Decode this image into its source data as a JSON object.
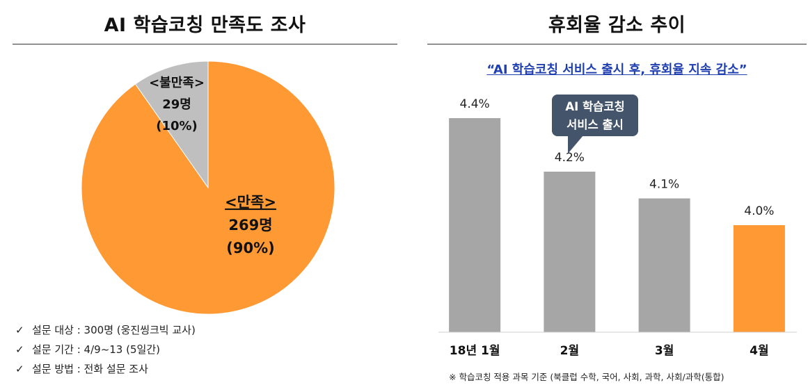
{
  "left": {
    "title": "AI 학습코칭 만족도 조사",
    "notes": [
      {
        "check": "✓",
        "text": "설문 대상 : 300명 (웅진씽크빅 교사)"
      },
      {
        "check": "✓",
        "text": "설문 기간 : 4/9~13 (5일간)"
      },
      {
        "check": "✓",
        "text": "설문 방법 : 전화 설문 조사"
      }
    ]
  },
  "right": {
    "title": "휴회율 감소 추이",
    "subtitle": "“AI 학습코칭 서비스 출시 후, 휴회율 지속 감소”",
    "callout": [
      "AI 학습코칭",
      "서비스 출시"
    ],
    "footnote": "※ 학습코칭 적용 과목 기준 (북클럽 수학, 국어, 사회, 과학, 사회/과학(통합)"
  },
  "colors": {
    "orange": "#ff9933",
    "gray": "#a6a6a6",
    "light_gray": "#bfbfbf",
    "callout": "#44546a",
    "subtitle_blue": "#1f3fb0"
  },
  "chart_data": [
    {
      "type": "pie",
      "title": "AI 학습코칭 만족도 조사",
      "slices": [
        {
          "label": "<만족>",
          "count_label": "269명",
          "pct_label": "(90%)",
          "value": 269,
          "percent": 90,
          "color": "#ff9933"
        },
        {
          "label": "<불만족>",
          "count_label": "29명",
          "pct_label": "(10%)",
          "value": 29,
          "percent": 10,
          "color": "#bfbfbf"
        }
      ]
    },
    {
      "type": "bar",
      "title": "휴회율 감소 추이",
      "categories": [
        "18년 1월",
        "2월",
        "3월",
        "4월"
      ],
      "values": [
        4.4,
        4.2,
        4.1,
        4.0
      ],
      "value_labels": [
        "4.4%",
        "4.2%",
        "4.1%",
        "4.0%"
      ],
      "colors": [
        "#a6a6a6",
        "#a6a6a6",
        "#a6a6a6",
        "#ff9933"
      ],
      "ylim": [
        3.6,
        4.4
      ]
    }
  ]
}
